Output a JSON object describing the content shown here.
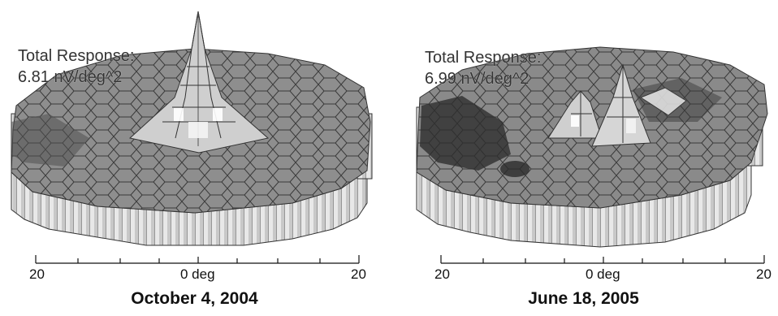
{
  "panels": [
    {
      "response_label": "Total Response:",
      "response_value": "6.81 nV/deg^2",
      "axis": {
        "left": "20",
        "center": "0 deg",
        "right": "20"
      },
      "caption": "October 4, 2004",
      "features": [
        "single central peak"
      ]
    },
    {
      "response_label": "Total Response:",
      "response_value": "6.99 nV/deg^2",
      "axis": {
        "left": "20",
        "center": "0 deg",
        "right": "20"
      },
      "caption": "June 18, 2005",
      "features": [
        "twin central peaks",
        "dark depression on left"
      ]
    }
  ],
  "colors": {
    "surface_fill": "#8e8e8e",
    "surface_stroke": "#3a3a3a",
    "pillar": "#e6e6e6",
    "dark_region": "#2e2e2e"
  }
}
